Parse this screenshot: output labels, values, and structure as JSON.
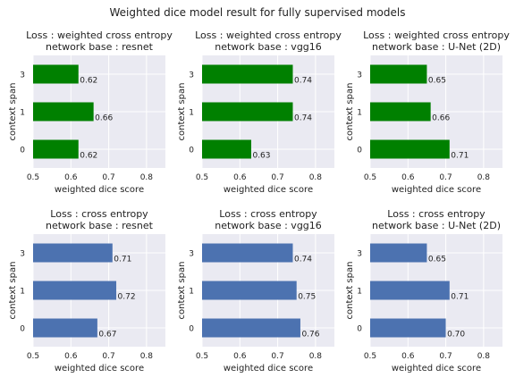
{
  "suptitle": "Weighted dice model result for fully supervised models",
  "colors": {
    "green": "#008000",
    "blue": "#4C72B0",
    "panel_bg": "#EAEAF2",
    "grid": "#ffffff"
  },
  "chart_data": [
    {
      "type": "bar",
      "orientation": "horizontal",
      "color": "green",
      "title_line1": "Loss : weighted cross entropy",
      "title_line2": "network base : resnet",
      "xlabel": "weighted dice score",
      "ylabel": "context span",
      "xlim": [
        0.5,
        0.85
      ],
      "xticks": [
        "0.5",
        "0.6",
        "0.7",
        "0.8"
      ],
      "categories": [
        "0",
        "1",
        "3"
      ],
      "values": [
        0.62,
        0.66,
        0.62
      ],
      "value_labels": [
        "0.62",
        "0.66",
        "0.62"
      ],
      "grid": true
    },
    {
      "type": "bar",
      "orientation": "horizontal",
      "color": "green",
      "title_line1": "Loss : weighted cross entropy",
      "title_line2": "network base : vgg16",
      "xlabel": "weighted dice score",
      "ylabel": "context span",
      "xlim": [
        0.5,
        0.85
      ],
      "xticks": [
        "0.5",
        "0.6",
        "0.7",
        "0.8"
      ],
      "categories": [
        "0",
        "1",
        "3"
      ],
      "values": [
        0.63,
        0.74,
        0.74
      ],
      "value_labels": [
        "0.63",
        "0.74",
        "0.74"
      ],
      "grid": true
    },
    {
      "type": "bar",
      "orientation": "horizontal",
      "color": "green",
      "title_line1": "Loss : weighted cross entropy",
      "title_line2": "network base : U-Net (2D)",
      "xlabel": "weighted dice score",
      "ylabel": "context span",
      "xlim": [
        0.5,
        0.85
      ],
      "xticks": [
        "0.5",
        "0.6",
        "0.7",
        "0.8"
      ],
      "categories": [
        "0",
        "1",
        "3"
      ],
      "values": [
        0.71,
        0.66,
        0.65
      ],
      "value_labels": [
        "0.71",
        "0.66",
        "0.65"
      ],
      "grid": true
    },
    {
      "type": "bar",
      "orientation": "horizontal",
      "color": "blue",
      "title_line1": "Loss : cross entropy",
      "title_line2": "network base : resnet",
      "xlabel": "weighted dice score",
      "ylabel": "context span",
      "xlim": [
        0.5,
        0.85
      ],
      "xticks": [
        "0.5",
        "0.6",
        "0.7",
        "0.8"
      ],
      "categories": [
        "0",
        "1",
        "3"
      ],
      "values": [
        0.67,
        0.72,
        0.71
      ],
      "value_labels": [
        "0.67",
        "0.72",
        "0.71"
      ],
      "grid": true
    },
    {
      "type": "bar",
      "orientation": "horizontal",
      "color": "blue",
      "title_line1": "Loss : cross entropy",
      "title_line2": "network base : vgg16",
      "xlabel": "weighted dice score",
      "ylabel": "context span",
      "xlim": [
        0.5,
        0.85
      ],
      "xticks": [
        "0.5",
        "0.6",
        "0.7",
        "0.8"
      ],
      "categories": [
        "0",
        "1",
        "3"
      ],
      "values": [
        0.76,
        0.75,
        0.74
      ],
      "value_labels": [
        "0.76",
        "0.75",
        "0.74"
      ],
      "grid": true
    },
    {
      "type": "bar",
      "orientation": "horizontal",
      "color": "blue",
      "title_line1": "Loss : cross entropy",
      "title_line2": "network base : U-Net (2D)",
      "xlabel": "weighted dice score",
      "ylabel": "context span",
      "xlim": [
        0.5,
        0.85
      ],
      "xticks": [
        "0.5",
        "0.6",
        "0.7",
        "0.8"
      ],
      "categories": [
        "0",
        "1",
        "3"
      ],
      "values": [
        0.7,
        0.71,
        0.65
      ],
      "value_labels": [
        "0.70",
        "0.71",
        "0.65"
      ],
      "grid": true
    }
  ]
}
